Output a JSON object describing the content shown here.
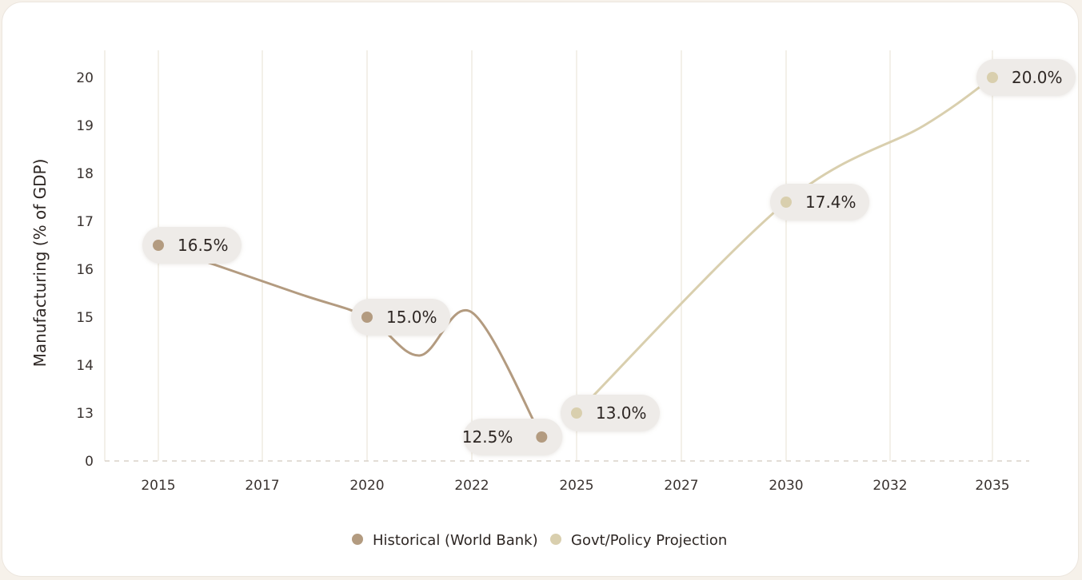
{
  "chart_data": {
    "type": "line",
    "categories": [
      "2015",
      "2017",
      "2020",
      "2022",
      "2025",
      "2027",
      "2030",
      "2032",
      "2035"
    ],
    "ylabel": "Manufacturing (% of GDP)",
    "yticks": [
      0,
      13,
      14,
      15,
      16,
      17,
      18,
      19,
      20
    ],
    "grid": "vertical",
    "legend_position": "bottom-center",
    "series": [
      {
        "name": "Historical (World Bank)",
        "color": "#b39b80",
        "x": [
          2015,
          2018,
          2020,
          2021,
          2022,
          2024
        ],
        "values": [
          16.5,
          15.5,
          15.0,
          14.2,
          15.1,
          12.5
        ],
        "labeled_points": [
          {
            "x": 2015,
            "value": 16.5,
            "label": "16.5%"
          },
          {
            "x": 2020,
            "value": 15.0,
            "label": "15.0%"
          },
          {
            "x": 2024,
            "value": 12.5,
            "label": "12.5%"
          }
        ]
      },
      {
        "name": "Govt/Policy Projection",
        "color": "#d9cfae",
        "x": [
          2025,
          2030,
          2033,
          2035
        ],
        "values": [
          13.0,
          17.4,
          19.0,
          20.0
        ],
        "labeled_points": [
          {
            "x": 2025,
            "value": 13.0,
            "label": "13.0%"
          },
          {
            "x": 2030,
            "value": 17.4,
            "label": "17.4%"
          },
          {
            "x": 2035,
            "value": 20.0,
            "label": "20.0%"
          }
        ]
      }
    ]
  }
}
